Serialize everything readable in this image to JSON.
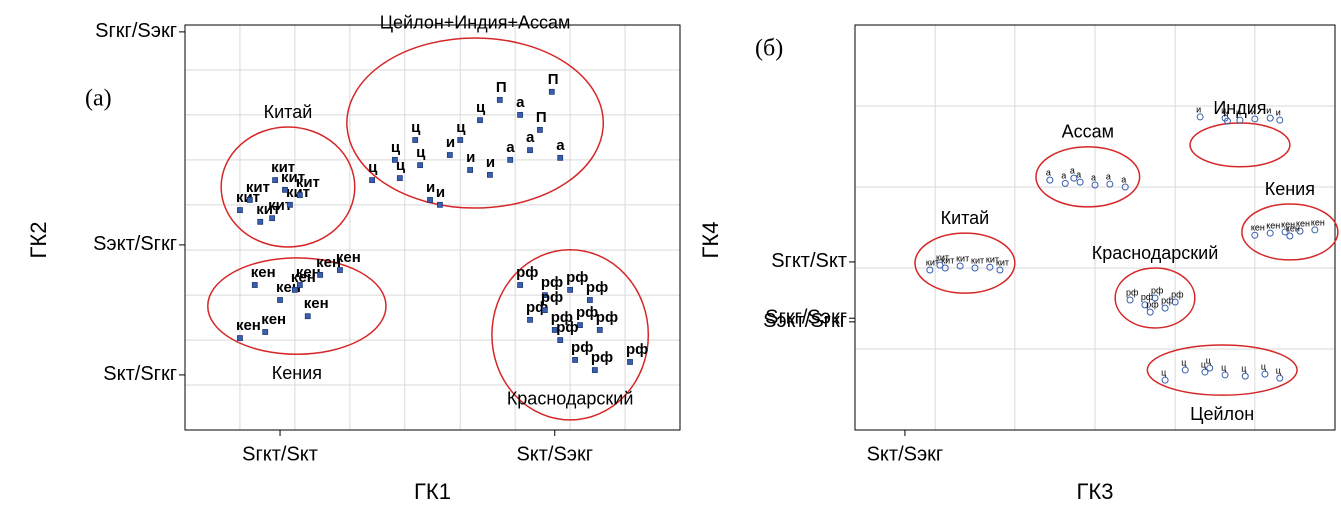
{
  "chart_data": [
    {
      "type": "scatter",
      "panel_label": "(а)",
      "x_label": "ГК1",
      "y_label": "ГК2",
      "xlim": [
        0,
        100
      ],
      "ylim": [
        0,
        100
      ],
      "xticks": [
        {
          "value": 19.2,
          "label": "Sгкт/Sкт"
        },
        {
          "value": 74.7,
          "label": "Sкт/Sэкг"
        }
      ],
      "yticks": [
        {
          "value": 98.3,
          "label": "Sгкг/Sэкг"
        },
        {
          "value": 45.7,
          "label": "Sэкт/Sгкг"
        },
        {
          "value": 13.6,
          "label": "Sкт/Sгкг"
        }
      ],
      "grid_x": [
        11.1,
        22.2,
        33.3,
        44.4,
        55.6,
        66.7,
        77.8,
        88.9
      ],
      "grid_y": [
        11.1,
        22.2,
        33.3,
        44.4,
        55.6,
        66.7,
        77.8,
        88.9
      ],
      "marker": "square",
      "point_color": "#3a5fad",
      "ellipse_color": "#d62728",
      "groups": [
        {
          "name": "Китай",
          "label_pos": "above",
          "ellipse": {
            "cx": 20.8,
            "cy": 60,
            "rx": 13.5,
            "ry": 14.8
          },
          "x": [
            11.1,
            15.2,
            17.6,
            21.2,
            23.2,
            20.2,
            13.1,
            18.2
          ],
          "y": [
            54.3,
            51.4,
            52.3,
            55.6,
            58.0,
            59.3,
            56.8,
            61.7
          ],
          "point_labels": [
            "кит",
            "кит",
            "кит",
            "кит",
            "кит",
            "кит",
            "кит",
            "кит"
          ]
        },
        {
          "name": "Цейлон+Индия+Ассам",
          "label_pos": "above",
          "ellipse": {
            "cx": 58.6,
            "cy": 75.8,
            "rx": 25.9,
            "ry": 21
          },
          "x": [
            37.8,
            43.4,
            49.5,
            51.5,
            47.5,
            53.5,
            57.6,
            61.6,
            65.7,
            69.7,
            75.8,
            74.1,
            67.7,
            59.6,
            55.6,
            63.6,
            71.7,
            46.5,
            42.4
          ],
          "y": [
            61.7,
            62.2,
            56.8,
            55.6,
            65.4,
            67.9,
            64.2,
            63.0,
            66.7,
            69.1,
            67.2,
            83.5,
            77.8,
            76.5,
            71.6,
            81.5,
            74.1,
            71.6,
            66.7
          ],
          "point_labels": [
            "ц",
            "ц",
            "и",
            "и",
            "ц",
            "и",
            "и",
            "и",
            "а",
            "а",
            "а",
            "П",
            "а",
            "ц",
            "ц",
            "П",
            "П",
            "ц",
            "ц"
          ]
        },
        {
          "name": "Кения",
          "label_pos": "below",
          "ellipse": {
            "cx": 22.6,
            "cy": 30.6,
            "rx": 18,
            "ry": 11.9
          },
          "x": [
            11.1,
            16.2,
            14.1,
            19.2,
            23.2,
            27.3,
            31.3,
            24.8,
            22.2
          ],
          "y": [
            22.7,
            24.2,
            35.8,
            32.1,
            35.8,
            38.3,
            39.5,
            28.1,
            34.6
          ],
          "point_labels": [
            "кен",
            "кен",
            "кен",
            "кен",
            "кен",
            "кен",
            "кен",
            "кен",
            "кен"
          ]
        },
        {
          "name": "Краснодарский",
          "label_pos": "inside-bottom",
          "ellipse": {
            "cx": 77.8,
            "cy": 23.5,
            "rx": 15.8,
            "ry": 21
          },
          "x": [
            67.7,
            72.7,
            77.8,
            81.8,
            69.7,
            74.7,
            79.8,
            83.8,
            75.8,
            78.8,
            82.8,
            89.9,
            72.7
          ],
          "y": [
            35.8,
            33.3,
            34.6,
            32.1,
            27.2,
            24.7,
            25.9,
            24.7,
            22.2,
            17.3,
            14.8,
            16.8,
            29.6
          ],
          "point_labels": [
            "рф",
            "рф",
            "рф",
            "рф",
            "рф",
            "рф",
            "рф",
            "рф",
            "рф",
            "рф",
            "рф",
            "рф",
            "рф"
          ]
        }
      ]
    },
    {
      "type": "scatter",
      "panel_label": "(б)",
      "x_label": "ГК3",
      "y_label": "ГК4",
      "xlim": [
        0,
        100
      ],
      "ylim": [
        0,
        100
      ],
      "xticks": [
        {
          "value": 10.4,
          "label": "Sкт/Sэкг"
        }
      ],
      "yticks": [
        {
          "value": 41.5,
          "label": "Sгкт/Sкт"
        },
        {
          "value": 27.6,
          "label": "Sгкг/Sэкг"
        },
        {
          "value": 26.7,
          "label": "Sэкт/Sгкг"
        }
      ],
      "grid_x": [
        16.7,
        33.3,
        50,
        66.7,
        83.3
      ],
      "grid_y": [
        20,
        40,
        60,
        80
      ],
      "marker": "circle",
      "point_color": "#3a5fad",
      "ellipse_color": "#d62728",
      "groups": [
        {
          "name": "Индия",
          "label_pos": "above",
          "ellipse": {
            "cx": 80.2,
            "cy": 70.4,
            "rx": 10.4,
            "ry": 5.4
          },
          "x": [
            71.9,
            77.1,
            80.2,
            83.3,
            86.5,
            88.5,
            77.6
          ],
          "y": [
            77.3,
            77.0,
            76.5,
            76.8,
            77.0,
            76.5,
            76.3
          ],
          "point_labels": [
            "и",
            "и",
            "и",
            "и",
            "и",
            "и",
            "и"
          ]
        },
        {
          "name": "Ассам",
          "label_pos": "above",
          "ellipse": {
            "cx": 48.5,
            "cy": 62.5,
            "rx": 10.8,
            "ry": 7.4
          },
          "x": [
            40.6,
            43.8,
            46.9,
            50.0,
            53.1,
            56.3,
            45.6
          ],
          "y": [
            61.7,
            60.9,
            61.2,
            60.5,
            60.7,
            60.0,
            62.2
          ],
          "point_labels": [
            "а",
            "а",
            "а",
            "а",
            "а",
            "а",
            "а"
          ]
        },
        {
          "name": "Кения",
          "label_pos": "above",
          "ellipse": {
            "cx": 90.6,
            "cy": 48.9,
            "rx": 10,
            "ry": 6.9
          },
          "x": [
            83.3,
            86.5,
            89.6,
            92.7,
            95.8,
            90.6
          ],
          "y": [
            48.1,
            48.6,
            48.9,
            49.1,
            49.4,
            47.9
          ],
          "point_labels": [
            "кен",
            "кен",
            "кен",
            "кен",
            "кен",
            "кен"
          ]
        },
        {
          "name": "Китай",
          "label_pos": "above",
          "ellipse": {
            "cx": 22.9,
            "cy": 41.2,
            "rx": 10.4,
            "ry": 7.4
          },
          "x": [
            15.6,
            18.8,
            21.9,
            25.0,
            28.1,
            30.2,
            17.7
          ],
          "y": [
            39.5,
            40.0,
            40.5,
            40.0,
            40.2,
            39.5,
            40.7
          ],
          "point_labels": [
            "кит",
            "кит",
            "кит",
            "кит",
            "кит",
            "кит",
            "кит"
          ]
        },
        {
          "name": "Краснодарский",
          "label_pos": "above",
          "ellipse": {
            "cx": 62.5,
            "cy": 32.6,
            "rx": 8.3,
            "ry": 7.4
          },
          "x": [
            57.3,
            60.4,
            62.5,
            64.6,
            66.7,
            61.5
          ],
          "y": [
            32.1,
            30.9,
            32.6,
            30.1,
            31.6,
            29.1
          ],
          "point_labels": [
            "рф",
            "рф",
            "рф",
            "рф",
            "рф",
            "рф"
          ]
        },
        {
          "name": "Цейлон",
          "label_pos": "below",
          "ellipse": {
            "cx": 76.5,
            "cy": 14.8,
            "rx": 15.6,
            "ry": 6.2
          },
          "x": [
            64.6,
            68.8,
            72.9,
            77.1,
            81.3,
            85.4,
            88.5,
            73.9
          ],
          "y": [
            12.3,
            14.8,
            14.3,
            13.6,
            13.3,
            13.8,
            12.8,
            15.3
          ],
          "point_labels": [
            "ц",
            "ц",
            "ц",
            "ц",
            "ц",
            "ц",
            "ц",
            "ц"
          ]
        }
      ]
    }
  ]
}
